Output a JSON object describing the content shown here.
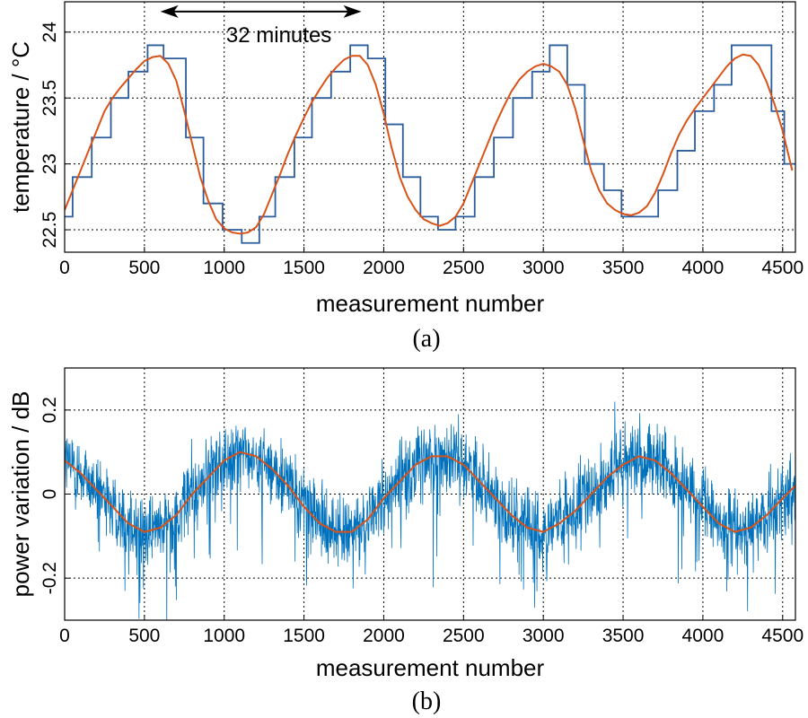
{
  "chart_data": [
    {
      "panel": "(a)",
      "type": "line",
      "xlabel": "measurement number",
      "ylabel": "temperature / °C",
      "xlim": [
        0,
        4580
      ],
      "ylim": [
        22.33,
        24.23
      ],
      "xticks": [
        0,
        500,
        1000,
        1500,
        2000,
        2500,
        3000,
        3500,
        4000,
        4500
      ],
      "yticks": [
        22.5,
        23,
        23.5,
        24
      ],
      "grid": true,
      "annotation": {
        "text": "32 minutes",
        "x_from": 600,
        "x_to": 1860,
        "y": 24.04
      },
      "series": [
        {
          "style": "step",
          "color": "#2b5d9c",
          "x": [
            0,
            50,
            170,
            290,
            400,
            520,
            620,
            760,
            870,
            990,
            1110,
            1220,
            1320,
            1440,
            1550,
            1670,
            1790,
            1900,
            2010,
            2120,
            2230,
            2340,
            2450,
            2570,
            2690,
            2810,
            2930,
            3040,
            3150,
            3260,
            3380,
            3490,
            3600,
            3720,
            3840,
            3950,
            4070,
            4180,
            4310,
            4430,
            4510,
            4580
          ],
          "y": [
            22.6,
            22.9,
            23.2,
            23.5,
            23.7,
            23.9,
            23.8,
            23.2,
            22.7,
            22.5,
            22.4,
            22.6,
            22.9,
            23.2,
            23.5,
            23.7,
            23.9,
            23.8,
            23.3,
            22.9,
            22.6,
            22.5,
            22.6,
            22.9,
            23.2,
            23.5,
            23.7,
            23.9,
            23.6,
            23.0,
            22.8,
            22.6,
            22.6,
            22.8,
            23.1,
            23.4,
            23.6,
            23.9,
            23.9,
            23.4,
            23.0,
            23.0
          ]
        },
        {
          "style": "smooth",
          "color": "#d95319",
          "x": [
            0,
            50,
            100,
            150,
            200,
            250,
            300,
            350,
            400,
            450,
            500,
            550,
            600,
            650,
            700,
            750,
            800,
            850,
            900,
            950,
            1000,
            1050,
            1100,
            1150,
            1200,
            1250,
            1300,
            1350,
            1400,
            1450,
            1500,
            1550,
            1600,
            1650,
            1700,
            1750,
            1800,
            1850,
            1900,
            1950,
            2000,
            2050,
            2100,
            2150,
            2200,
            2250,
            2300,
            2350,
            2400,
            2450,
            2500,
            2550,
            2600,
            2650,
            2700,
            2750,
            2800,
            2850,
            2900,
            2950,
            3000,
            3050,
            3100,
            3150,
            3200,
            3250,
            3300,
            3350,
            3400,
            3450,
            3500,
            3550,
            3600,
            3650,
            3700,
            3750,
            3800,
            3850,
            3900,
            3950,
            4000,
            4050,
            4100,
            4150,
            4200,
            4250,
            4300,
            4350,
            4400,
            4450,
            4500,
            4560
          ],
          "y": [
            22.65,
            22.8,
            22.95,
            23.1,
            23.25,
            23.4,
            23.5,
            23.58,
            23.65,
            23.72,
            23.78,
            23.81,
            23.82,
            23.76,
            23.63,
            23.4,
            23.15,
            22.9,
            22.72,
            22.58,
            22.51,
            22.48,
            22.47,
            22.48,
            22.52,
            22.62,
            22.77,
            22.92,
            23.08,
            23.22,
            23.35,
            23.47,
            23.57,
            23.66,
            23.73,
            23.79,
            23.82,
            23.82,
            23.75,
            23.6,
            23.38,
            23.12,
            22.9,
            22.75,
            22.65,
            22.58,
            22.55,
            22.53,
            22.55,
            22.6,
            22.7,
            22.85,
            23.0,
            23.15,
            23.3,
            23.43,
            23.55,
            23.64,
            23.7,
            23.74,
            23.76,
            23.74,
            23.7,
            23.6,
            23.42,
            23.18,
            22.95,
            22.8,
            22.7,
            22.65,
            22.62,
            22.61,
            22.63,
            22.68,
            22.78,
            22.92,
            23.08,
            23.22,
            23.33,
            23.42,
            23.5,
            23.58,
            23.66,
            23.74,
            23.8,
            23.83,
            23.82,
            23.75,
            23.62,
            23.45,
            23.25,
            22.95
          ]
        }
      ]
    },
    {
      "panel": "(b)",
      "type": "line",
      "xlabel": "measurement number",
      "ylabel": "power variation / dB",
      "xlim": [
        0,
        4580
      ],
      "ylim": [
        -0.3,
        0.3
      ],
      "xticks": [
        0,
        500,
        1000,
        1500,
        2000,
        2500,
        3000,
        3500,
        4000,
        4500
      ],
      "yticks": [
        -0.2,
        0,
        0.2
      ],
      "ytick_labels": [
        "-0.2",
        "0",
        "0.2"
      ],
      "grid": true,
      "series": [
        {
          "style": "noisy",
          "color": "#0072bd",
          "x": [
            0,
            100,
            200,
            300,
            400,
            500,
            600,
            700,
            800,
            900,
            1000,
            1100,
            1200,
            1300,
            1400,
            1500,
            1600,
            1700,
            1800,
            1900,
            2000,
            2100,
            2200,
            2300,
            2400,
            2500,
            2600,
            2700,
            2800,
            2900,
            3000,
            3100,
            3200,
            3300,
            3400,
            3500,
            3600,
            3700,
            3800,
            3900,
            4000,
            4100,
            4200,
            4300,
            4400,
            4500,
            4580
          ],
          "y": [
            0.08,
            0.05,
            0.01,
            -0.03,
            -0.07,
            -0.09,
            -0.08,
            -0.05,
            0.0,
            0.04,
            0.08,
            0.1,
            0.09,
            0.06,
            0.02,
            -0.03,
            -0.07,
            -0.09,
            -0.09,
            -0.06,
            -0.01,
            0.03,
            0.07,
            0.09,
            0.09,
            0.07,
            0.03,
            -0.01,
            -0.05,
            -0.08,
            -0.09,
            -0.07,
            -0.04,
            0.0,
            0.04,
            0.07,
            0.09,
            0.08,
            0.05,
            0.01,
            -0.03,
            -0.07,
            -0.09,
            -0.08,
            -0.05,
            -0.01,
            0.02
          ]
        },
        {
          "style": "smooth",
          "color": "#d95319",
          "x": [
            0,
            100,
            200,
            300,
            400,
            500,
            600,
            700,
            800,
            900,
            1000,
            1100,
            1200,
            1300,
            1400,
            1500,
            1600,
            1700,
            1800,
            1900,
            2000,
            2100,
            2200,
            2300,
            2400,
            2500,
            2600,
            2700,
            2800,
            2900,
            3000,
            3100,
            3200,
            3300,
            3400,
            3500,
            3600,
            3700,
            3800,
            3900,
            4000,
            4100,
            4200,
            4300,
            4400,
            4500,
            4580
          ],
          "y": [
            0.08,
            0.05,
            0.01,
            -0.03,
            -0.07,
            -0.09,
            -0.08,
            -0.05,
            0.0,
            0.04,
            0.08,
            0.1,
            0.09,
            0.06,
            0.02,
            -0.03,
            -0.07,
            -0.09,
            -0.09,
            -0.06,
            -0.01,
            0.03,
            0.07,
            0.09,
            0.09,
            0.07,
            0.03,
            -0.01,
            -0.05,
            -0.08,
            -0.09,
            -0.07,
            -0.04,
            0.0,
            0.04,
            0.07,
            0.09,
            0.08,
            0.05,
            0.01,
            -0.03,
            -0.07,
            -0.09,
            -0.08,
            -0.05,
            -0.01,
            0.02
          ]
        }
      ]
    }
  ]
}
